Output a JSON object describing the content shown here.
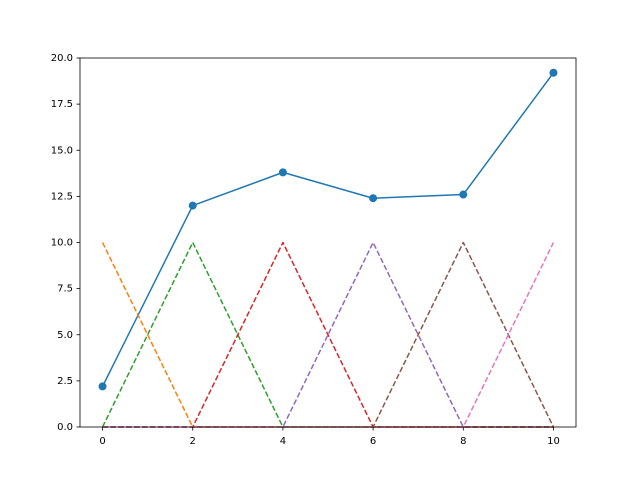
{
  "chart_data": {
    "type": "line",
    "x": [
      0,
      2,
      4,
      6,
      8,
      10
    ],
    "series": [
      {
        "color": "#1f77b4",
        "style": "solid",
        "marker": "o",
        "values": [
          2.2,
          12.0,
          13.8,
          12.4,
          12.6,
          19.2
        ]
      },
      {
        "color": "#ff7f0e",
        "style": "dashed",
        "values": [
          10,
          0,
          0,
          0,
          0,
          0
        ]
      },
      {
        "color": "#2ca02c",
        "style": "dashed",
        "values": [
          0,
          10,
          0,
          0,
          0,
          0
        ]
      },
      {
        "color": "#d62728",
        "style": "dashed",
        "values": [
          0,
          0,
          10,
          0,
          0,
          0
        ]
      },
      {
        "color": "#9467bd",
        "style": "dashed",
        "values": [
          0,
          0,
          0,
          10,
          0,
          0
        ]
      },
      {
        "color": "#8c564b",
        "style": "dashed",
        "values": [
          0,
          0,
          0,
          0,
          10,
          0
        ]
      },
      {
        "color": "#e377c2",
        "style": "dashed",
        "values": [
          0,
          0,
          0,
          0,
          0,
          10
        ]
      }
    ],
    "xlim": [
      -0.5,
      10.5
    ],
    "xticks": [
      0,
      2,
      4,
      6,
      8,
      10
    ],
    "ylim": [
      0,
      20
    ],
    "yticks": [
      {
        "value": 0,
        "label": "0.0"
      },
      {
        "value": 2.5,
        "label": "2.5"
      },
      {
        "value": 5,
        "label": "5.0"
      },
      {
        "value": 7.5,
        "label": "7.5"
      },
      {
        "value": 10,
        "label": "10.0"
      },
      {
        "value": 12.5,
        "label": "12.5"
      },
      {
        "value": 15,
        "label": "15.0"
      },
      {
        "value": 17.5,
        "label": "17.5"
      },
      {
        "value": 20,
        "label": "20.0"
      }
    ],
    "grid": false
  }
}
